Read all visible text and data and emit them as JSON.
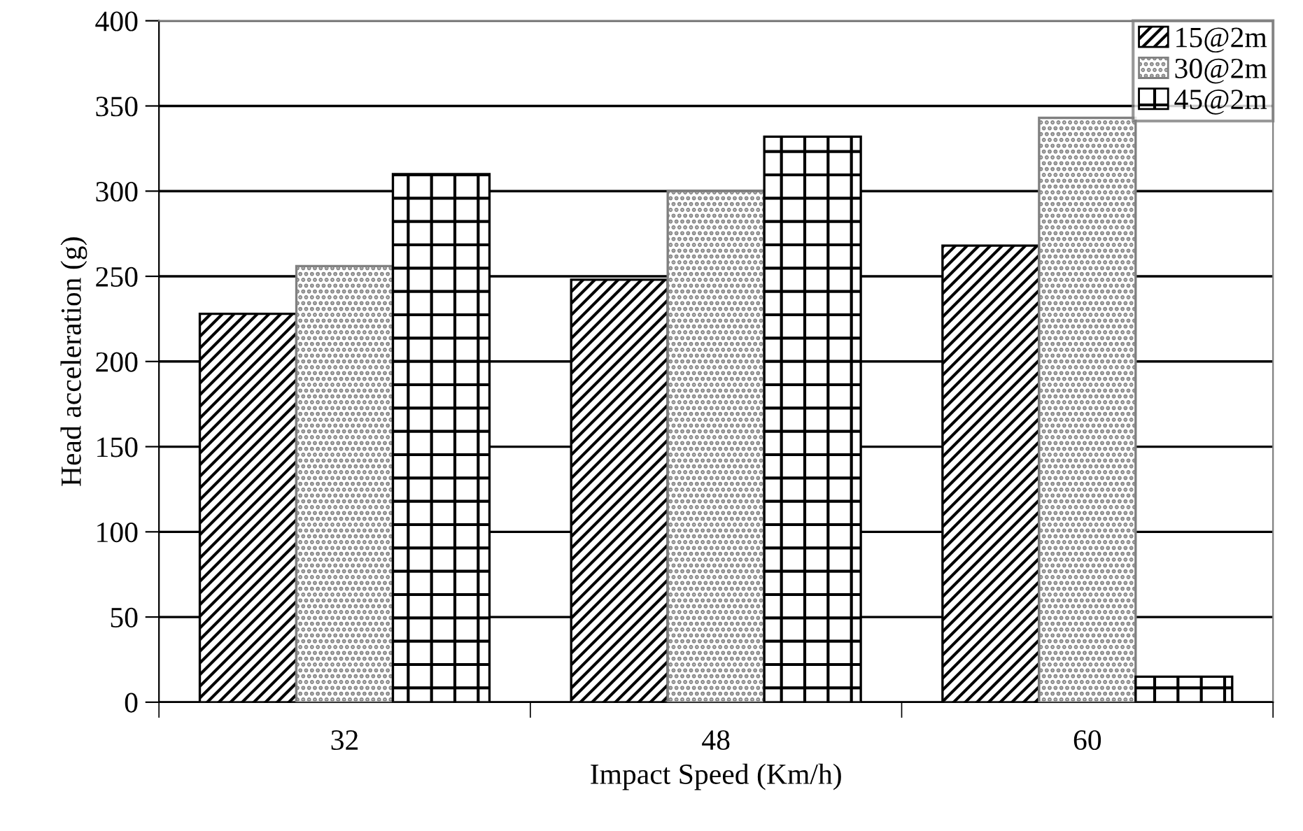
{
  "chart_data": {
    "type": "bar",
    "xlabel": "Impact Speed (Km/h)",
    "ylabel": "Head acceleration (g)",
    "categories": [
      "32",
      "48",
      "60"
    ],
    "series": [
      {
        "name": "15@2m",
        "color": "#000000",
        "values": [
          228,
          248,
          268
        ]
      },
      {
        "name": "30@2m",
        "color": "#808080",
        "values": [
          256,
          300,
          343
        ]
      },
      {
        "name": "45@2m",
        "color": "#000000",
        "values": [
          310,
          332,
          15
        ]
      }
    ],
    "ylim": [
      0,
      400
    ],
    "yticks": [
      0,
      50,
      100,
      150,
      200,
      250,
      300,
      350,
      400
    ],
    "grid": "y",
    "legend": "top right"
  }
}
